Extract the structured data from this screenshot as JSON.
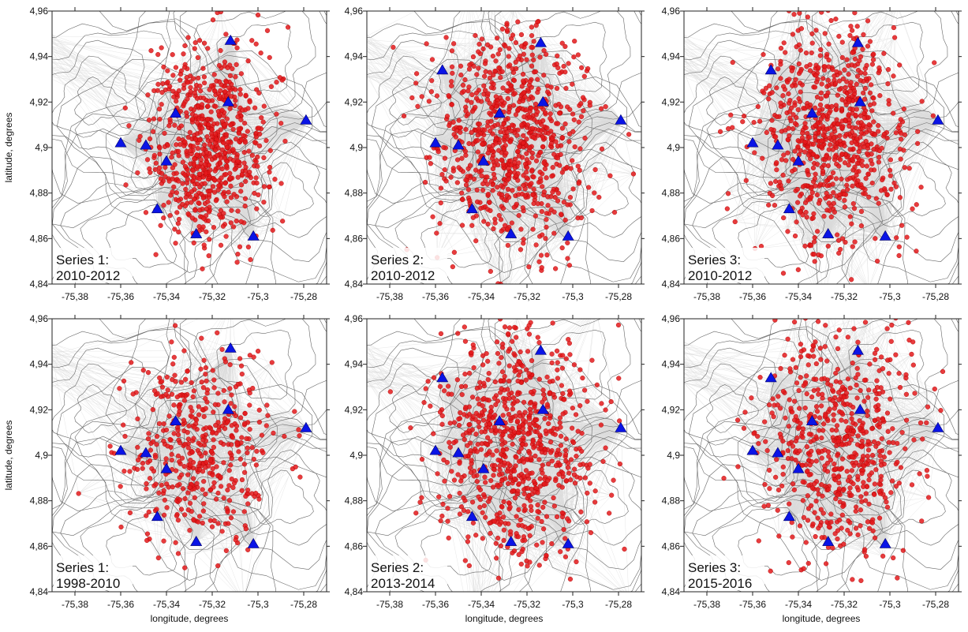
{
  "chart_data": [
    {
      "type": "scatter",
      "series_label": "Series 1:",
      "period": "2010-2012",
      "xlabel": "",
      "ylabel": "latitude, degrees",
      "xlim": [
        -75.39,
        -75.27
      ],
      "ylim": [
        4.84,
        4.96
      ],
      "xticks": [
        "-75,38",
        "-75,36",
        "-75,34",
        "-75,32",
        "-75,3",
        "-75,28"
      ],
      "yticks": [
        "4,84",
        "4,86",
        "4,88",
        "4,9",
        "4,92",
        "4,94",
        "4,96"
      ],
      "cluster": {
        "center": [
          -75.322,
          4.902
        ],
        "spread": [
          0.013,
          0.021
        ],
        "count": 700
      },
      "stations": [
        [
          -75.312,
          4.947
        ],
        [
          -75.279,
          4.912
        ],
        [
          -75.313,
          4.92
        ],
        [
          -75.336,
          4.915
        ],
        [
          -75.36,
          4.902
        ],
        [
          -75.349,
          4.901
        ],
        [
          -75.34,
          4.894
        ],
        [
          -75.344,
          4.873
        ],
        [
          -75.327,
          4.862
        ],
        [
          -75.302,
          4.861
        ]
      ]
    },
    {
      "type": "scatter",
      "series_label": "Series 2:",
      "period": "2010-2012",
      "xlabel": "",
      "ylabel": "",
      "xlim": [
        -75.39,
        -75.27
      ],
      "ylim": [
        4.84,
        4.96
      ],
      "xticks": [
        "-75,38",
        "-75,36",
        "-75,34",
        "-75,32",
        "-75,3",
        "-75,28"
      ],
      "yticks": [
        "4,84",
        "4,86",
        "4,88",
        "4,9",
        "4,92",
        "4,94",
        "4,96"
      ],
      "cluster": {
        "center": [
          -75.326,
          4.904
        ],
        "spread": [
          0.016,
          0.024
        ],
        "count": 800
      },
      "stations": [
        [
          -75.314,
          4.946
        ],
        [
          -75.357,
          4.934
        ],
        [
          -75.279,
          4.912
        ],
        [
          -75.313,
          4.92
        ],
        [
          -75.332,
          4.915
        ],
        [
          -75.36,
          4.902
        ],
        [
          -75.35,
          4.901
        ],
        [
          -75.339,
          4.894
        ],
        [
          -75.344,
          4.873
        ],
        [
          -75.327,
          4.862
        ],
        [
          -75.302,
          4.861
        ]
      ]
    },
    {
      "type": "scatter",
      "series_label": "Series 3:",
      "period": "2010-2012",
      "xlabel": "",
      "ylabel": "",
      "xlim": [
        -75.39,
        -75.27
      ],
      "ylim": [
        4.84,
        4.96
      ],
      "xticks": [
        "-75,38",
        "-75,36",
        "-75,34",
        "-75,32",
        "-75,3",
        "-75,28"
      ],
      "yticks": [
        "4,84",
        "4,86",
        "4,88",
        "4,9",
        "4,92",
        "4,94",
        "4,96"
      ],
      "cluster": {
        "center": [
          -75.325,
          4.906
        ],
        "spread": [
          0.016,
          0.025
        ],
        "count": 750
      },
      "stations": [
        [
          -75.314,
          4.946
        ],
        [
          -75.352,
          4.934
        ],
        [
          -75.279,
          4.912
        ],
        [
          -75.313,
          4.92
        ],
        [
          -75.334,
          4.915
        ],
        [
          -75.36,
          4.902
        ],
        [
          -75.349,
          4.901
        ],
        [
          -75.34,
          4.894
        ],
        [
          -75.344,
          4.873
        ],
        [
          -75.327,
          4.862
        ],
        [
          -75.302,
          4.861
        ]
      ]
    },
    {
      "type": "scatter",
      "series_label": "Series 1:",
      "period": "1998-2010",
      "xlabel": "longitude, degrees",
      "ylabel": "latitude, degrees",
      "xlim": [
        -75.39,
        -75.27
      ],
      "ylim": [
        4.84,
        4.96
      ],
      "xticks": [
        "-75,38",
        "-75,36",
        "-75,34",
        "-75,32",
        "-75,3",
        "-75,28"
      ],
      "yticks": [
        "4,84",
        "4,86",
        "4,88",
        "4,9",
        "4,92",
        "4,94",
        "4,96"
      ],
      "cluster": {
        "center": [
          -75.325,
          4.903
        ],
        "spread": [
          0.016,
          0.022
        ],
        "count": 450
      },
      "stations": [
        [
          -75.312,
          4.947
        ],
        [
          -75.279,
          4.912
        ],
        [
          -75.313,
          4.92
        ],
        [
          -75.336,
          4.915
        ],
        [
          -75.36,
          4.902
        ],
        [
          -75.349,
          4.901
        ],
        [
          -75.34,
          4.894
        ],
        [
          -75.344,
          4.873
        ],
        [
          -75.327,
          4.862
        ],
        [
          -75.302,
          4.861
        ]
      ]
    },
    {
      "type": "scatter",
      "series_label": "Series 2:",
      "period": "2013-2014",
      "xlabel": "longitude, degrees",
      "ylabel": "",
      "xlim": [
        -75.39,
        -75.27
      ],
      "ylim": [
        4.84,
        4.96
      ],
      "xticks": [
        "-75,38",
        "-75,36",
        "-75,34",
        "-75,32",
        "-75,3",
        "-75,28"
      ],
      "yticks": [
        "4,84",
        "4,86",
        "4,88",
        "4,9",
        "4,92",
        "4,94",
        "4,96"
      ],
      "cluster": {
        "center": [
          -75.326,
          4.905
        ],
        "spread": [
          0.017,
          0.025
        ],
        "count": 750
      },
      "stations": [
        [
          -75.314,
          4.946
        ],
        [
          -75.357,
          4.934
        ],
        [
          -75.279,
          4.912
        ],
        [
          -75.313,
          4.92
        ],
        [
          -75.332,
          4.915
        ],
        [
          -75.36,
          4.902
        ],
        [
          -75.35,
          4.901
        ],
        [
          -75.339,
          4.894
        ],
        [
          -75.344,
          4.873
        ],
        [
          -75.327,
          4.862
        ],
        [
          -75.302,
          4.861
        ]
      ]
    },
    {
      "type": "scatter",
      "series_label": "Series 3:",
      "period": "2015-2016",
      "xlabel": "longitude, degrees",
      "ylabel": "",
      "xlim": [
        -75.39,
        -75.27
      ],
      "ylim": [
        4.84,
        4.96
      ],
      "xticks": [
        "-75,38",
        "-75,36",
        "-75,34",
        "-75,32",
        "-75,3",
        "-75,28"
      ],
      "yticks": [
        "4,84",
        "4,86",
        "4,88",
        "4,9",
        "4,92",
        "4,94",
        "4,96"
      ],
      "cluster": {
        "center": [
          -75.324,
          4.906
        ],
        "spread": [
          0.017,
          0.024
        ],
        "count": 600
      },
      "stations": [
        [
          -75.314,
          4.946
        ],
        [
          -75.352,
          4.934
        ],
        [
          -75.279,
          4.912
        ],
        [
          -75.313,
          4.92
        ],
        [
          -75.334,
          4.915
        ],
        [
          -75.36,
          4.902
        ],
        [
          -75.349,
          4.901
        ],
        [
          -75.34,
          4.894
        ],
        [
          -75.344,
          4.873
        ],
        [
          -75.327,
          4.862
        ],
        [
          -75.302,
          4.861
        ]
      ]
    }
  ],
  "colors": {
    "events": "#e41a1c",
    "event_edge": "#b00000",
    "stations": "#0a14e6",
    "raypaths": "#808080",
    "contours": "#333333"
  }
}
